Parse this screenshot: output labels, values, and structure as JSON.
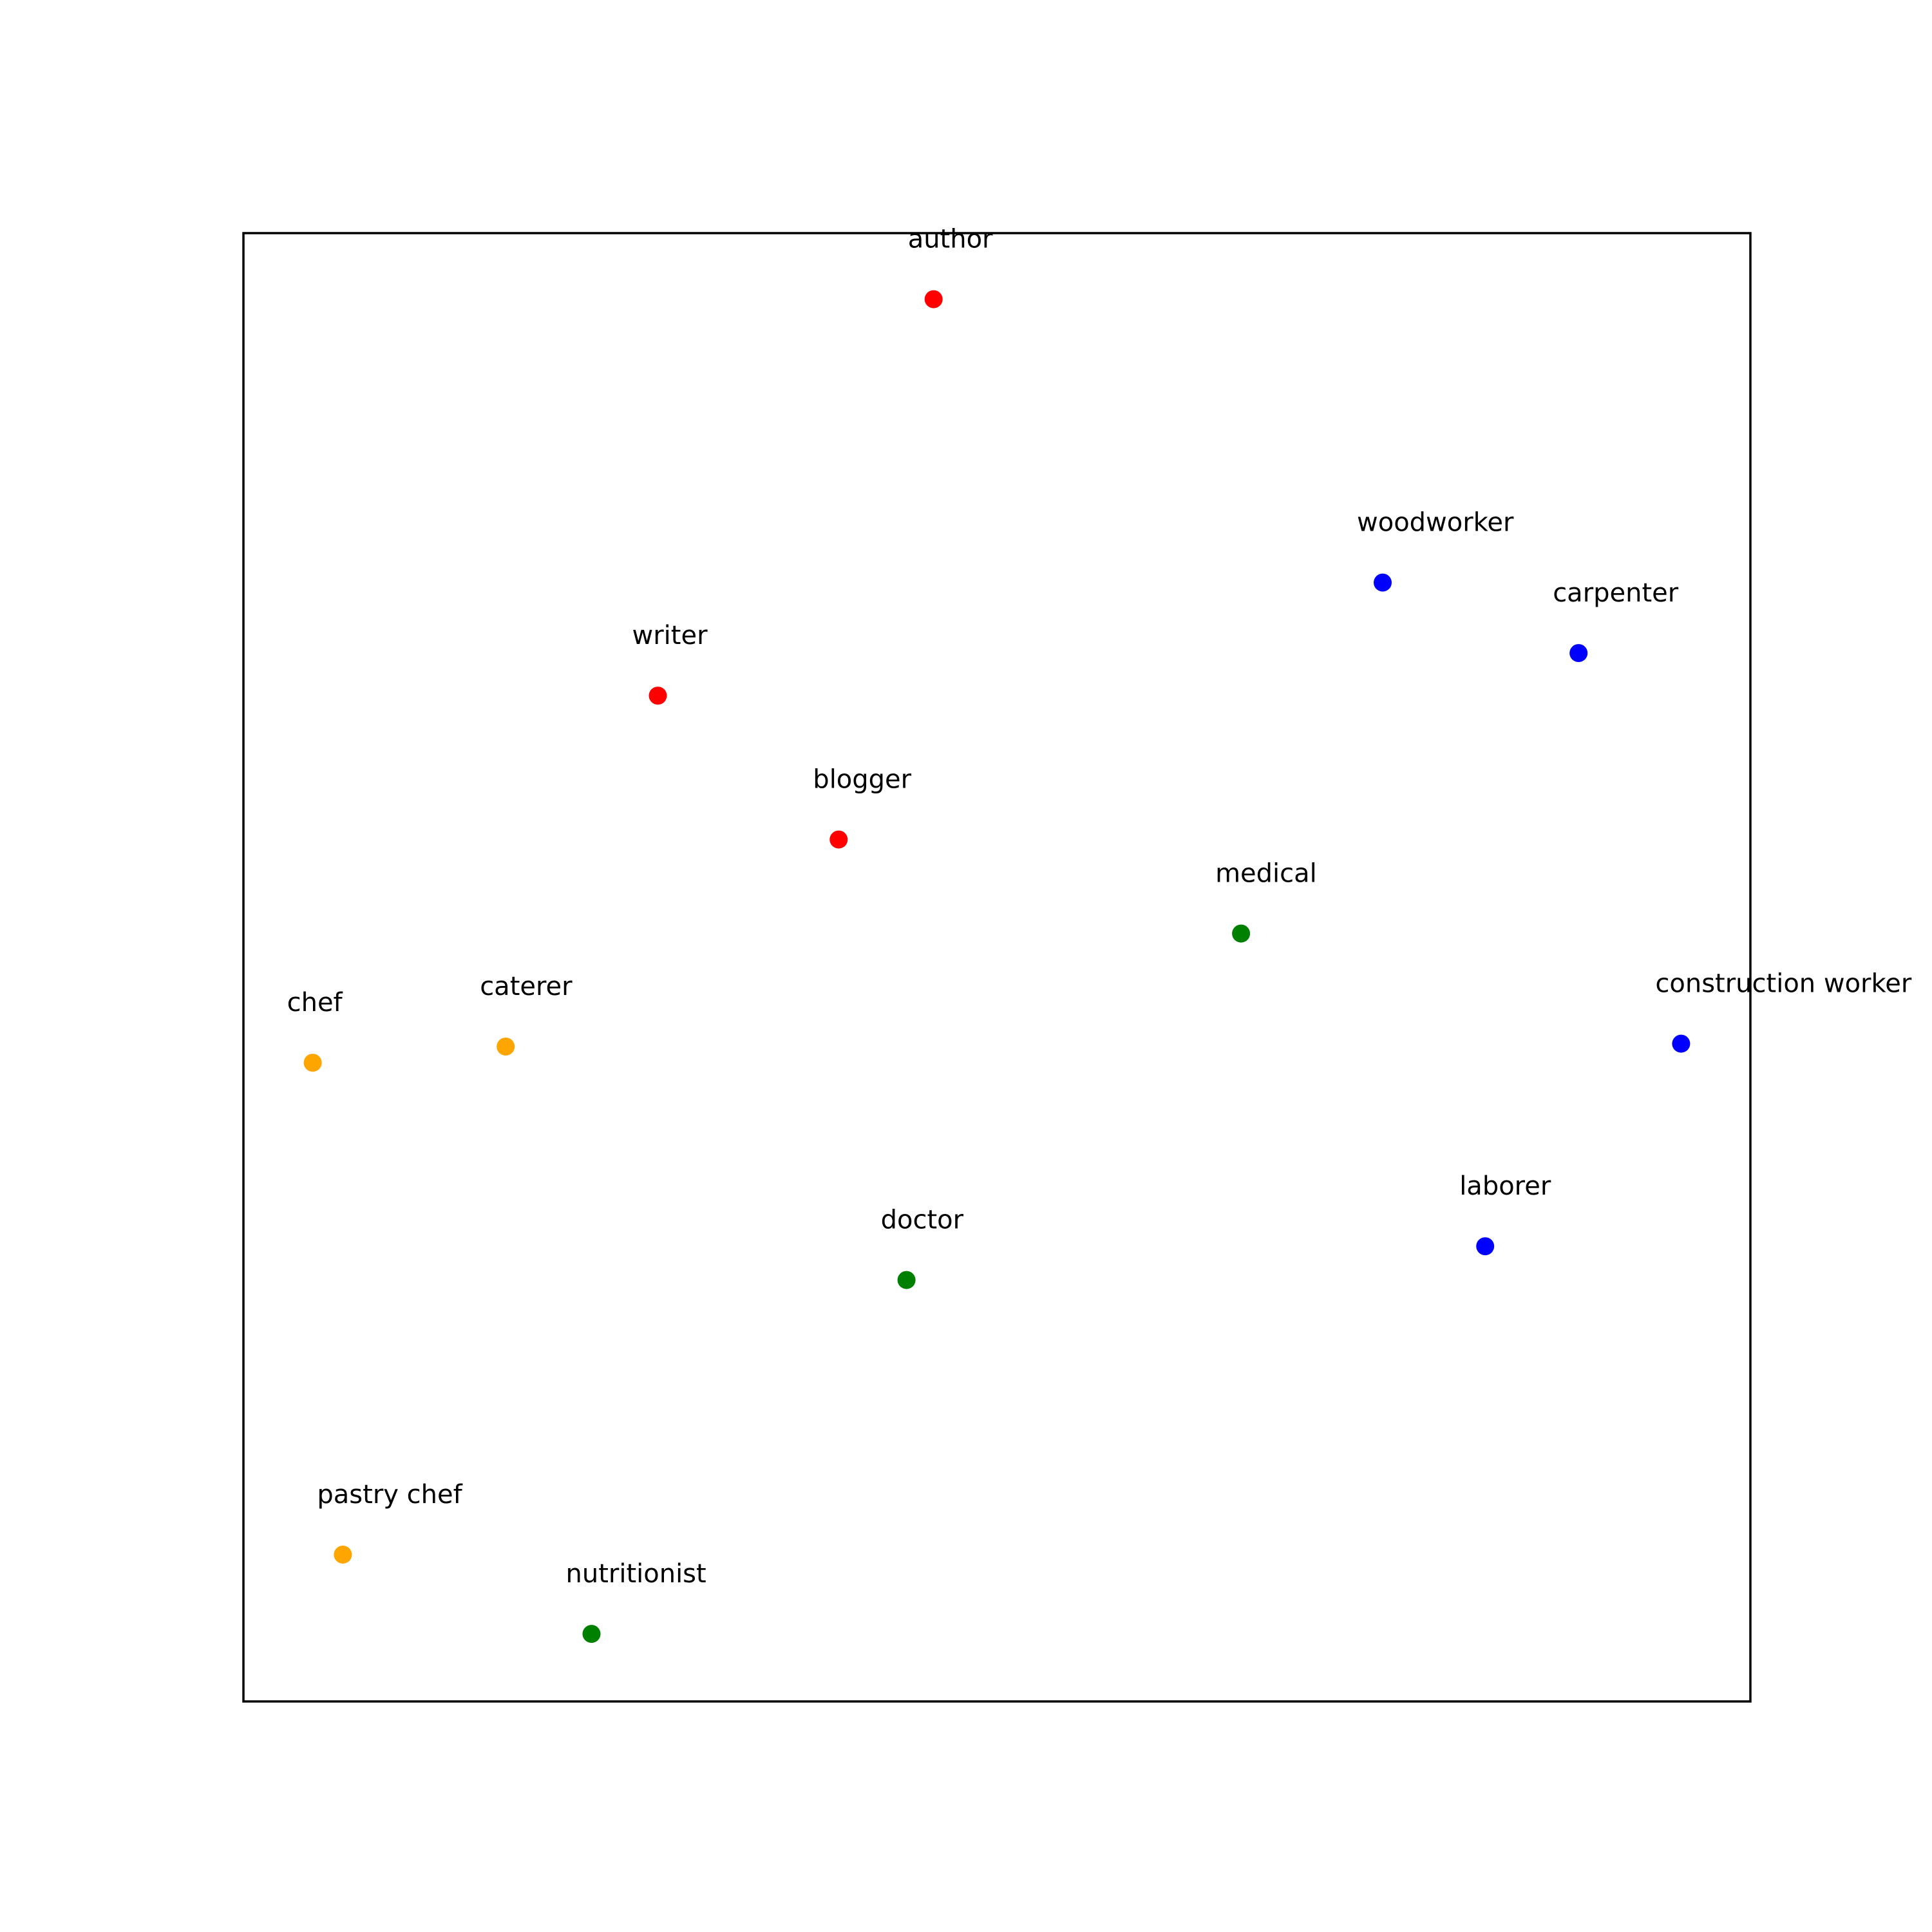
{
  "chart_data": {
    "type": "scatter",
    "title": "",
    "xlabel": "",
    "ylabel": "",
    "xlim": [
      0,
      100
    ],
    "ylim": [
      0,
      100
    ],
    "grid": false,
    "axis_ticks": false,
    "legend": null,
    "colors": {
      "writing": "#ff0000",
      "construction": "#0000ff",
      "health": "#008000",
      "food": "#ffa500"
    },
    "points": [
      {
        "label": "author",
        "x": 45.8,
        "y": 95.5,
        "group": "writing"
      },
      {
        "label": "writer",
        "x": 27.5,
        "y": 68.5,
        "group": "writing"
      },
      {
        "label": "blogger",
        "x": 39.5,
        "y": 58.7,
        "group": "writing"
      },
      {
        "label": "woodworker",
        "x": 75.6,
        "y": 76.2,
        "group": "construction"
      },
      {
        "label": "carpenter",
        "x": 88.6,
        "y": 71.4,
        "group": "construction"
      },
      {
        "label": "construction worker",
        "x": 95.4,
        "y": 44.8,
        "group": "construction"
      },
      {
        "label": "laborer",
        "x": 82.4,
        "y": 31.0,
        "group": "construction"
      },
      {
        "label": "medical",
        "x": 66.2,
        "y": 52.3,
        "group": "health"
      },
      {
        "label": "doctor",
        "x": 44.0,
        "y": 28.7,
        "group": "health"
      },
      {
        "label": "nutritionist",
        "x": 23.1,
        "y": 4.6,
        "group": "health"
      },
      {
        "label": "chef",
        "x": 4.6,
        "y": 43.5,
        "group": "food"
      },
      {
        "label": "caterer",
        "x": 17.4,
        "y": 44.6,
        "group": "food"
      },
      {
        "label": "pastry chef",
        "x": 6.6,
        "y": 10.0,
        "group": "food"
      }
    ]
  }
}
